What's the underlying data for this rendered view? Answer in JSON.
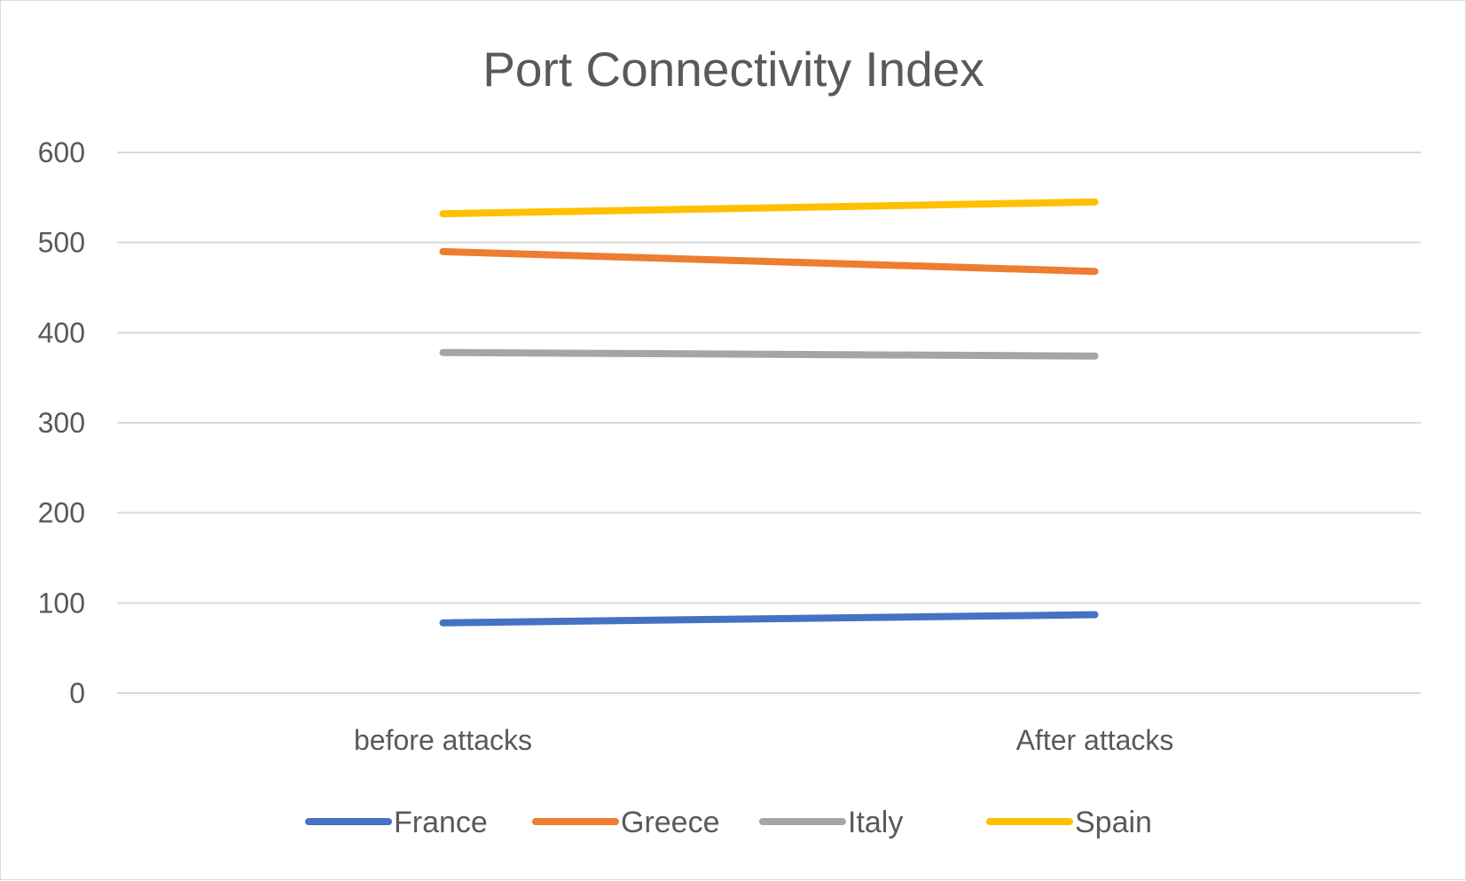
{
  "chart_data": {
    "type": "line",
    "title": "Port Connectivity Index",
    "xlabel": "",
    "ylabel": "",
    "categories": [
      "before attacks",
      "After attacks"
    ],
    "series": [
      {
        "name": "France",
        "color": "#4472C4",
        "values": [
          78,
          87
        ]
      },
      {
        "name": "Greece",
        "color": "#ED7D31",
        "values": [
          490,
          468
        ]
      },
      {
        "name": "Italy",
        "color": "#A5A5A5",
        "values": [
          378,
          374
        ]
      },
      {
        "name": "Spain",
        "color": "#FFC000",
        "values": [
          532,
          545
        ]
      }
    ],
    "ylim": [
      0,
      600
    ],
    "yticks": [
      "0",
      "100",
      "200",
      "300",
      "400",
      "500",
      "600"
    ],
    "grid": true,
    "legend": "bottom"
  }
}
